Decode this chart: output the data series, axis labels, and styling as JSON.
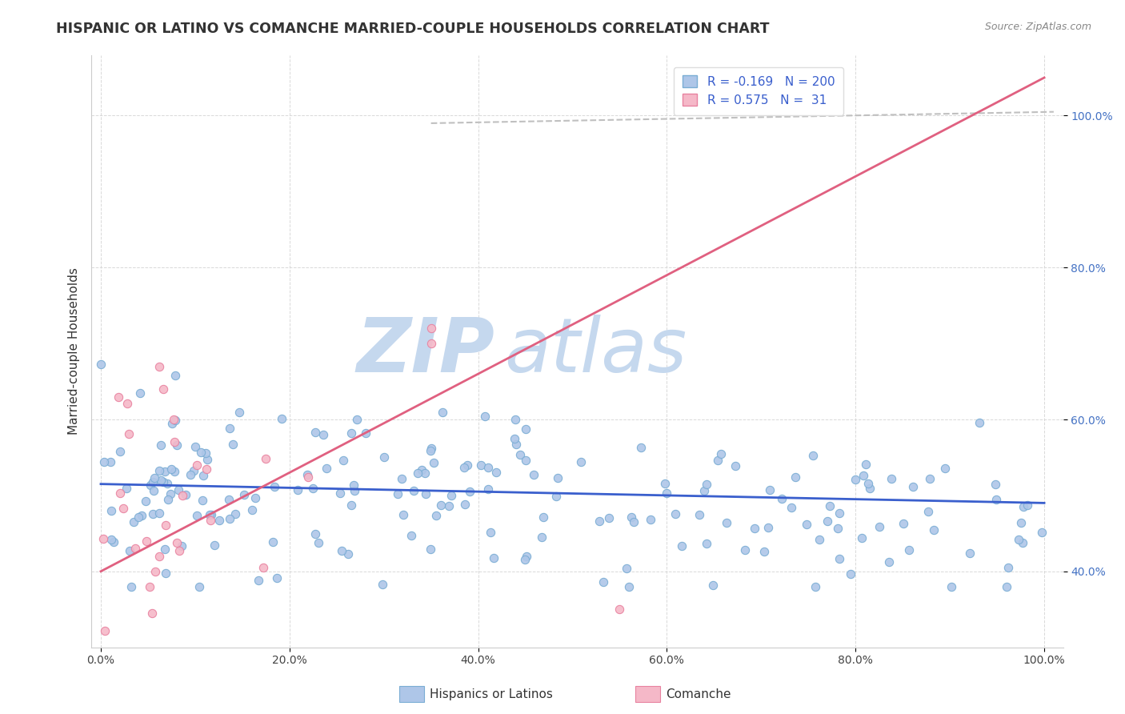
{
  "title": "HISPANIC OR LATINO VS COMANCHE MARRIED-COUPLE HOUSEHOLDS CORRELATION CHART",
  "source": "Source: ZipAtlas.com",
  "ylabel": "Married-couple Households",
  "blue_r": -0.169,
  "blue_n": 200,
  "pink_r": 0.575,
  "pink_n": 31,
  "blue_color": "#aec6e8",
  "blue_edge_color": "#7aadd4",
  "pink_color": "#f5b8c8",
  "pink_edge_color": "#e882a0",
  "blue_line_color": "#3a5fcd",
  "pink_line_color": "#e06080",
  "trend_line_color": "#c0c0c0",
  "watermark_zip_color": "#c5d8ee",
  "watermark_atlas_color": "#c5d8ee",
  "legend_label_blue": "Hispanics or Latinos",
  "legend_label_pink": "Comanche",
  "ytick_labels": [
    "40.0%",
    "60.0%",
    "80.0%",
    "100.0%"
  ],
  "ytick_positions": [
    0.4,
    0.6,
    0.8,
    1.0
  ],
  "xtick_labels": [
    "0.0%",
    "20.0%",
    "40.0%",
    "60.0%",
    "80.0%",
    "100.0%"
  ],
  "xtick_positions": [
    0.0,
    0.2,
    0.4,
    0.6,
    0.8,
    1.0
  ],
  "ylim_min": 0.3,
  "ylim_max": 1.08,
  "xlim_min": -0.01,
  "xlim_max": 1.02,
  "pink_line_x0": 0.0,
  "pink_line_y0": 0.4,
  "pink_line_x1": 1.0,
  "pink_line_y1": 1.05,
  "blue_line_x0": 0.0,
  "blue_line_y0": 0.515,
  "blue_line_x1": 1.0,
  "blue_line_y1": 0.49,
  "trend_x0": 0.35,
  "trend_y0": 0.99,
  "trend_x1": 1.01,
  "trend_y1": 1.005
}
